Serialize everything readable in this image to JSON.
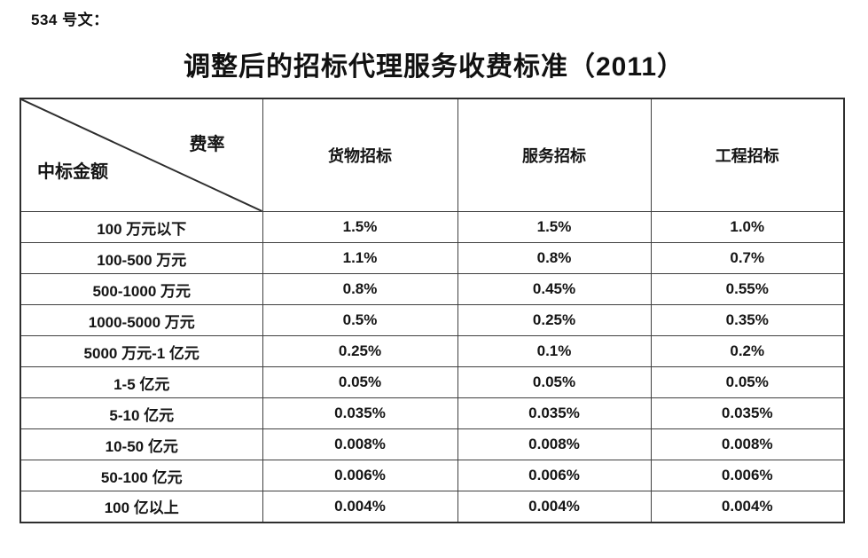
{
  "doc": {
    "ref_label": "534 号文：",
    "title": "调整后的招标代理服务收费标准（2011）"
  },
  "table": {
    "corner": {
      "top_right": "费率",
      "bottom_left": "中标金额"
    },
    "columns": [
      "货物招标",
      "服务招标",
      "工程招标"
    ],
    "rows": [
      {
        "label": "100 万元以下",
        "values": [
          "1.5%",
          "1.5%",
          "1.0%"
        ]
      },
      {
        "label": "100-500 万元",
        "values": [
          "1.1%",
          "0.8%",
          "0.7%"
        ]
      },
      {
        "label": "500-1000 万元",
        "values": [
          "0.8%",
          "0.45%",
          "0.55%"
        ]
      },
      {
        "label": "1000-5000 万元",
        "values": [
          "0.5%",
          "0.25%",
          "0.35%"
        ]
      },
      {
        "label": "5000 万元-1 亿元",
        "values": [
          "0.25%",
          "0.1%",
          "0.2%"
        ]
      },
      {
        "label": "1-5 亿元",
        "values": [
          "0.05%",
          "0.05%",
          "0.05%"
        ]
      },
      {
        "label": "5-10 亿元",
        "values": [
          "0.035%",
          "0.035%",
          "0.035%"
        ]
      },
      {
        "label": "10-50 亿元",
        "values": [
          "0.008%",
          "0.008%",
          "0.008%"
        ]
      },
      {
        "label": "50-100 亿元",
        "values": [
          "0.006%",
          "0.006%",
          "0.006%"
        ]
      },
      {
        "label": "100 亿以上",
        "values": [
          "0.004%",
          "0.004%",
          "0.004%"
        ]
      }
    ]
  }
}
